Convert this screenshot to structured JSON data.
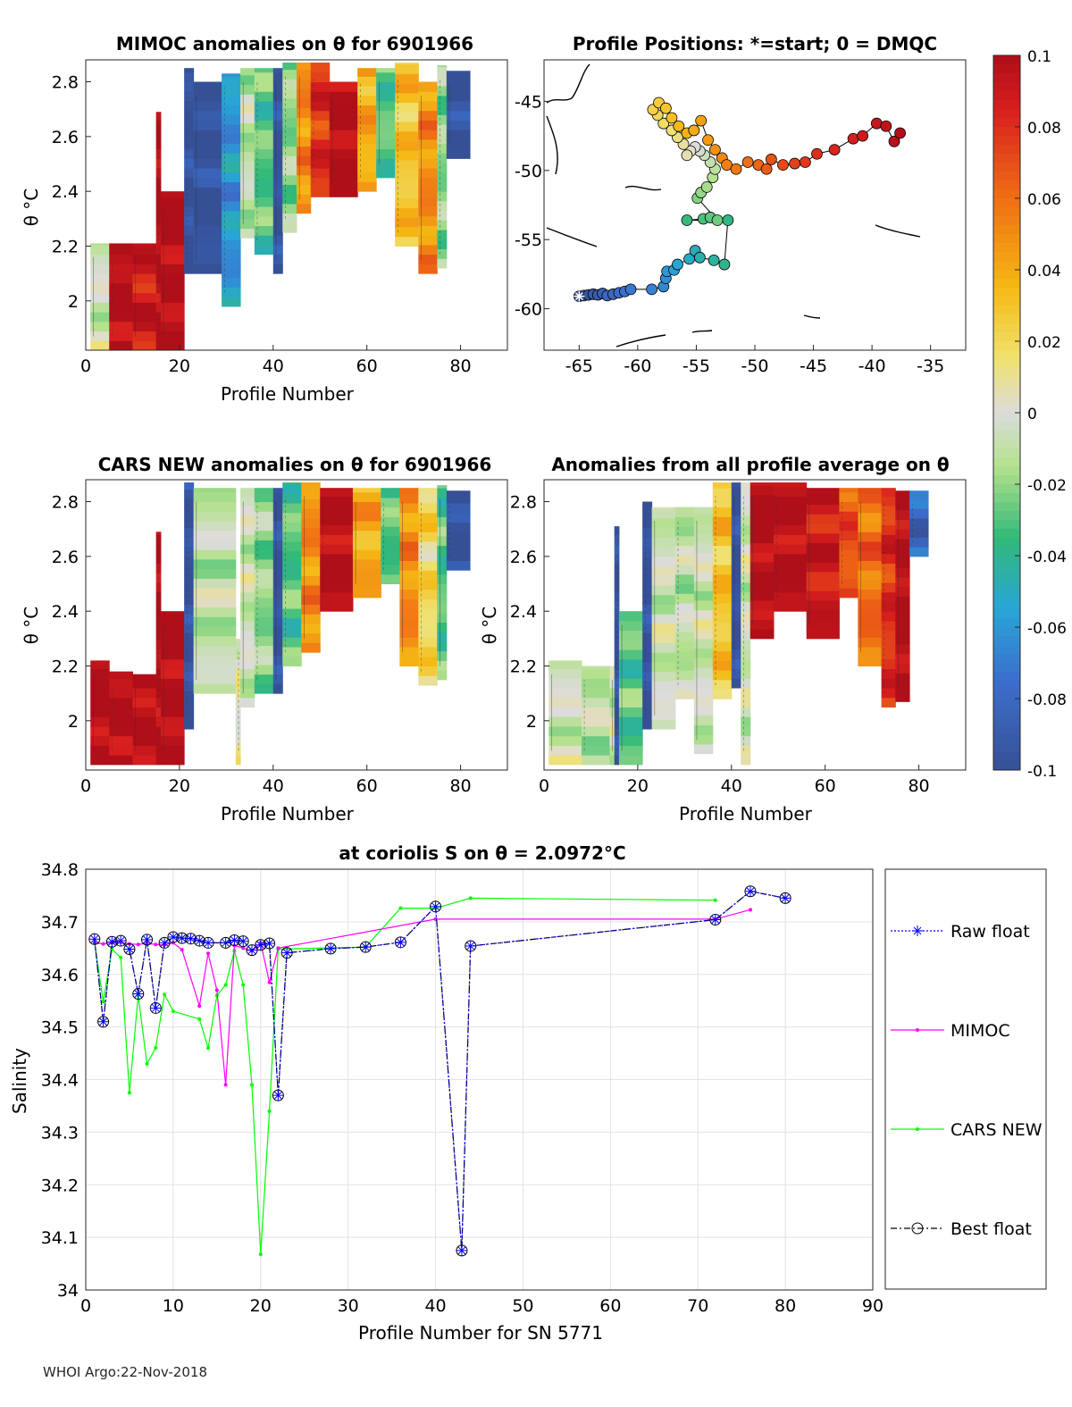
{
  "float_id": "6901966",
  "footer": "WHOI Argo:22-Nov-2018",
  "chart_data": [
    {
      "id": "mimoc",
      "type": "heatmap",
      "title": "MIMOC anomalies on θ  for 6901966",
      "xlabel": "Profile Number",
      "ylabel": "θ °C",
      "xlim": [
        0,
        90
      ],
      "ylim": [
        1.82,
        2.88
      ],
      "xticks": [
        "0",
        "20",
        "40",
        "60",
        "80"
      ],
      "yticks": [
        "2",
        "2.2",
        "2.4",
        "2.6",
        "2.8"
      ],
      "columns": [
        {
          "x0": 1,
          "x1": 5,
          "lo": 1.82,
          "hi": 2.21,
          "v": -0.005
        },
        {
          "x0": 5,
          "x1": 10,
          "lo": 1.82,
          "hi": 2.21,
          "v": 0.1
        },
        {
          "x0": 10,
          "x1": 15,
          "lo": 1.82,
          "hi": 2.21,
          "v": 0.09
        },
        {
          "x0": 15,
          "x1": 16,
          "lo": 1.82,
          "hi": 2.69,
          "v": 0.1
        },
        {
          "x0": 16,
          "x1": 21,
          "lo": 1.82,
          "hi": 2.4,
          "v": 0.1
        },
        {
          "x0": 21,
          "x1": 23,
          "lo": 2.1,
          "hi": 2.85,
          "v": -0.1
        },
        {
          "x0": 23,
          "x1": 29,
          "lo": 2.1,
          "hi": 2.8,
          "v": -0.1
        },
        {
          "x0": 29,
          "x1": 33,
          "lo": 1.98,
          "hi": 2.83,
          "v": -0.06
        },
        {
          "x0": 33,
          "x1": 36,
          "lo": 2.23,
          "hi": 2.85,
          "v": -0.01
        },
        {
          "x0": 36,
          "x1": 40,
          "lo": 2.17,
          "hi": 2.85,
          "v": -0.03
        },
        {
          "x0": 40,
          "x1": 42,
          "lo": 2.1,
          "hi": 2.85,
          "v": -0.1
        },
        {
          "x0": 42,
          "x1": 45,
          "lo": 2.25,
          "hi": 2.87,
          "v": -0.02
        },
        {
          "x0": 45,
          "x1": 48,
          "lo": 2.32,
          "hi": 2.87,
          "v": 0.05
        },
        {
          "x0": 48,
          "x1": 52,
          "lo": 2.38,
          "hi": 2.87,
          "v": 0.08
        },
        {
          "x0": 52,
          "x1": 58,
          "lo": 2.38,
          "hi": 2.8,
          "v": 0.1
        },
        {
          "x0": 58,
          "x1": 62,
          "lo": 2.4,
          "hi": 2.85,
          "v": 0.04
        },
        {
          "x0": 62,
          "x1": 66,
          "lo": 2.45,
          "hi": 2.85,
          "v": -0.03
        },
        {
          "x0": 66,
          "x1": 71,
          "lo": 2.2,
          "hi": 2.87,
          "v": 0.03
        },
        {
          "x0": 71,
          "x1": 75,
          "lo": 2.1,
          "hi": 2.8,
          "v": 0.05
        },
        {
          "x0": 75,
          "x1": 77,
          "lo": 2.12,
          "hi": 2.86,
          "v": -0.02
        },
        {
          "x0": 77,
          "x1": 82,
          "lo": 2.52,
          "hi": 2.84,
          "v": -0.1
        }
      ]
    },
    {
      "id": "map",
      "type": "scatter",
      "title": "Profile Positions: *=start; 0 = DMQC",
      "xlim": [
        -68,
        -32
      ],
      "ylim": [
        -63,
        -42
      ],
      "xticks": [
        "-65",
        "-60",
        "-55",
        "-50",
        "-45",
        "-40",
        "-35"
      ],
      "yticks": [
        "-45",
        "-50",
        "-55",
        "-60"
      ],
      "lon": [
        -65,
        -64.6,
        -64.2,
        -63.8,
        -63.4,
        -63,
        -62.6,
        -62.1,
        -61.6,
        -61.1,
        -60.6,
        -58.8,
        -57.8,
        -57.6,
        -57.5,
        -56.9,
        -56.6,
        -55.6,
        -55.1,
        -54.7,
        -53.5,
        -52.6,
        -52.3,
        -55.8,
        -54.4,
        -53.8,
        -53.2,
        -54.9,
        -54.6,
        -54.1,
        -53.6,
        -53.4,
        -53.8,
        -54.3,
        -54.7,
        -55.1,
        -55.5,
        -55.8,
        -56.1,
        -56.6,
        -57.1,
        -57.8,
        -58.3,
        -58.7,
        -58.2,
        -57.6,
        -57.1,
        -56.5,
        -55.8,
        -55.2,
        -54.6,
        -54,
        -53.4,
        -52.8,
        -52.4,
        -51.6,
        -50.6,
        -49.7,
        -49,
        -48.6,
        -47.6,
        -46.6,
        -45.7,
        -44.7,
        -43.2,
        -41.6,
        -40.8,
        -39.6,
        -38.8,
        -38.1,
        -37.6
      ],
      "lat": [
        -59.1,
        -59.05,
        -59.0,
        -58.95,
        -59.0,
        -58.9,
        -59.05,
        -58.95,
        -58.85,
        -58.75,
        -58.6,
        -58.6,
        -58.4,
        -57.8,
        -57.3,
        -57.2,
        -56.8,
        -56.4,
        -55.8,
        -56.3,
        -56.5,
        -56.8,
        -53.6,
        -53.6,
        -53.5,
        -53.4,
        -53.6,
        -52.0,
        -51.6,
        -51.2,
        -50.5,
        -49.9,
        -49.4,
        -48.9,
        -48.6,
        -48.3,
        -48.6,
        -48.9,
        -48.1,
        -47.6,
        -47.1,
        -46.6,
        -46.0,
        -45.6,
        -45.1,
        -45.5,
        -46.2,
        -46.8,
        -47.3,
        -47.1,
        -46.4,
        -47.8,
        -48.5,
        -49.1,
        -49.6,
        -49.9,
        -49.4,
        -49.6,
        -49.9,
        -49.2,
        -49.6,
        -49.5,
        -49.4,
        -48.8,
        -48.5,
        -47.7,
        -47.5,
        -46.6,
        -46.8,
        -47.9,
        -47.3
      ],
      "value_range": [
        -0.1,
        0.1
      ]
    },
    {
      "id": "cars",
      "type": "heatmap",
      "title": "CARS NEW anomalies on θ for 6901966",
      "xlabel": "Profile Number",
      "ylabel": "θ °C",
      "xlim": [
        0,
        90
      ],
      "ylim": [
        1.82,
        2.88
      ],
      "xticks": [
        "0",
        "20",
        "40",
        "60",
        "80"
      ],
      "yticks": [
        "2",
        "2.2",
        "2.4",
        "2.6",
        "2.8"
      ],
      "columns": [
        {
          "x0": 1,
          "x1": 5,
          "lo": 1.84,
          "hi": 2.22,
          "v": 0.1
        },
        {
          "x0": 5,
          "x1": 10,
          "lo": 1.84,
          "hi": 2.18,
          "v": 0.1
        },
        {
          "x0": 10,
          "x1": 15,
          "lo": 1.84,
          "hi": 2.17,
          "v": 0.1
        },
        {
          "x0": 15,
          "x1": 16,
          "lo": 1.84,
          "hi": 2.69,
          "v": 0.1
        },
        {
          "x0": 16,
          "x1": 21,
          "lo": 1.84,
          "hi": 2.4,
          "v": 0.1
        },
        {
          "x0": 21,
          "x1": 23,
          "lo": 1.97,
          "hi": 2.87,
          "v": -0.1
        },
        {
          "x0": 23,
          "x1": 32,
          "lo": 2.1,
          "hi": 2.85,
          "v": -0.01
        },
        {
          "x0": 32,
          "x1": 33,
          "lo": 1.84,
          "hi": 2.3,
          "v": 0.005
        },
        {
          "x0": 33,
          "x1": 36,
          "lo": 2.05,
          "hi": 2.85,
          "v": -0.005
        },
        {
          "x0": 36,
          "x1": 40,
          "lo": 2.1,
          "hi": 2.85,
          "v": -0.02
        },
        {
          "x0": 40,
          "x1": 42,
          "lo": 2.1,
          "hi": 2.85,
          "v": -0.1
        },
        {
          "x0": 42,
          "x1": 46,
          "lo": 2.2,
          "hi": 2.87,
          "v": -0.03
        },
        {
          "x0": 46,
          "x1": 50,
          "lo": 2.25,
          "hi": 2.87,
          "v": 0.05
        },
        {
          "x0": 50,
          "x1": 57,
          "lo": 2.4,
          "hi": 2.85,
          "v": 0.1
        },
        {
          "x0": 57,
          "x1": 63,
          "lo": 2.45,
          "hi": 2.85,
          "v": 0.04
        },
        {
          "x0": 63,
          "x1": 67,
          "lo": 2.5,
          "hi": 2.85,
          "v": -0.03
        },
        {
          "x0": 67,
          "x1": 71,
          "lo": 2.2,
          "hi": 2.85,
          "v": 0.05
        },
        {
          "x0": 71,
          "x1": 75,
          "lo": 2.13,
          "hi": 2.85,
          "v": 0.02
        },
        {
          "x0": 75,
          "x1": 77,
          "lo": 2.15,
          "hi": 2.86,
          "v": -0.03
        },
        {
          "x0": 77,
          "x1": 82,
          "lo": 2.55,
          "hi": 2.84,
          "v": -0.1
        }
      ]
    },
    {
      "id": "avg",
      "type": "heatmap",
      "title": "Anomalies from all profile average on θ",
      "xlabel": "Profile Number",
      "ylabel": "θ °C",
      "xlim": [
        0,
        90
      ],
      "ylim": [
        1.82,
        2.88
      ],
      "xticks": [
        "0",
        "20",
        "40",
        "60",
        "80"
      ],
      "yticks": [
        "2",
        "2.2",
        "2.4",
        "2.6",
        "2.8"
      ],
      "columns": [
        {
          "x0": 1,
          "x1": 8,
          "lo": 1.84,
          "hi": 2.22,
          "v": -0.005
        },
        {
          "x0": 8,
          "x1": 14,
          "lo": 1.84,
          "hi": 2.2,
          "v": -0.01
        },
        {
          "x0": 14,
          "x1": 15,
          "lo": 1.84,
          "hi": 2.2,
          "v": -0.005
        },
        {
          "x0": 15,
          "x1": 16,
          "lo": 1.84,
          "hi": 2.71,
          "v": -0.1
        },
        {
          "x0": 16,
          "x1": 21,
          "lo": 1.84,
          "hi": 2.4,
          "v": -0.03
        },
        {
          "x0": 21,
          "x1": 23,
          "lo": 1.97,
          "hi": 2.8,
          "v": -0.1
        },
        {
          "x0": 23,
          "x1": 28,
          "lo": 1.97,
          "hi": 2.78,
          "v": -0.005
        },
        {
          "x0": 28,
          "x1": 32,
          "lo": 2.08,
          "hi": 2.78,
          "v": -0.01
        },
        {
          "x0": 32,
          "x1": 36,
          "lo": 1.88,
          "hi": 2.78,
          "v": -0.005
        },
        {
          "x0": 36,
          "x1": 40,
          "lo": 2.08,
          "hi": 2.87,
          "v": 0.03
        },
        {
          "x0": 40,
          "x1": 42,
          "lo": 2.12,
          "hi": 2.87,
          "v": -0.1
        },
        {
          "x0": 42,
          "x1": 44,
          "lo": 1.84,
          "hi": 2.87,
          "v": -0.005
        },
        {
          "x0": 44,
          "x1": 49,
          "lo": 2.3,
          "hi": 2.87,
          "v": 0.1
        },
        {
          "x0": 49,
          "x1": 56,
          "lo": 2.4,
          "hi": 2.87,
          "v": 0.1
        },
        {
          "x0": 56,
          "x1": 63,
          "lo": 2.3,
          "hi": 2.85,
          "v": 0.09
        },
        {
          "x0": 63,
          "x1": 67,
          "lo": 2.45,
          "hi": 2.85,
          "v": 0.07
        },
        {
          "x0": 67,
          "x1": 72,
          "lo": 2.2,
          "hi": 2.85,
          "v": 0.06
        },
        {
          "x0": 72,
          "x1": 75,
          "lo": 2.05,
          "hi": 2.85,
          "v": 0.08
        },
        {
          "x0": 75,
          "x1": 78,
          "lo": 2.07,
          "hi": 2.84,
          "v": 0.1
        },
        {
          "x0": 78,
          "x1": 82,
          "lo": 2.6,
          "hi": 2.84,
          "v": -0.08
        }
      ]
    },
    {
      "id": "salinity",
      "type": "line",
      "title": "at coriolis S on θ = 2.0972°C",
      "xlabel": "Profile Number for SN 5771",
      "ylabel": "Salinity",
      "xlim": [
        0,
        90
      ],
      "ylim": [
        34,
        34.8
      ],
      "xticks": [
        "0",
        "10",
        "20",
        "30",
        "40",
        "50",
        "60",
        "70",
        "80",
        "90"
      ],
      "yticks": [
        "34",
        "34.1",
        "34.2",
        "34.3",
        "34.4",
        "34.5",
        "34.6",
        "34.7",
        "34.8"
      ],
      "series": [
        {
          "name": "Raw float",
          "color": "#0000ff",
          "x": [
            1,
            2,
            3,
            4,
            5,
            6,
            7,
            8,
            9,
            10,
            11,
            12,
            13,
            14,
            16,
            17,
            18,
            19,
            20,
            21,
            22,
            23,
            28,
            32,
            36,
            40,
            43,
            44,
            72,
            76,
            80
          ],
          "y": [
            34.667,
            34.51,
            34.662,
            34.664,
            34.648,
            34.563,
            34.666,
            34.536,
            34.66,
            34.671,
            34.669,
            34.668,
            34.664,
            34.66,
            34.66,
            34.665,
            34.663,
            34.646,
            34.656,
            34.659,
            34.37,
            34.641,
            34.649,
            34.652,
            34.661,
            34.729,
            34.075,
            34.654,
            34.704,
            34.758,
            34.745
          ]
        },
        {
          "name": "MIMOC",
          "color": "#ff00ff",
          "x": [
            1,
            2,
            3,
            4,
            5,
            6,
            7,
            8,
            9,
            10,
            11,
            13,
            14,
            15,
            16,
            17,
            18,
            19,
            20,
            21,
            22,
            40,
            72,
            76
          ],
          "y": [
            34.66,
            34.658,
            34.66,
            34.661,
            34.658,
            34.657,
            34.659,
            34.657,
            34.656,
            34.66,
            34.647,
            34.54,
            34.64,
            34.57,
            34.39,
            34.655,
            34.65,
            34.645,
            34.66,
            34.585,
            34.65,
            34.705,
            34.705,
            34.723
          ]
        },
        {
          "name": "CARS NEW",
          "color": "#00ff00",
          "x": [
            1,
            2,
            3,
            4,
            5,
            6,
            7,
            8,
            9,
            10,
            13,
            14,
            15,
            16,
            17,
            18,
            19,
            20,
            21,
            22,
            32,
            36,
            40,
            44,
            72
          ],
          "y": [
            34.66,
            34.548,
            34.648,
            34.632,
            34.375,
            34.56,
            34.43,
            34.46,
            34.562,
            34.53,
            34.515,
            34.46,
            34.56,
            34.58,
            34.645,
            34.58,
            34.39,
            34.068,
            34.34,
            34.648,
            34.652,
            34.726,
            34.726,
            34.745,
            34.741
          ]
        },
        {
          "name": "Best float",
          "color": "#000000",
          "x": [
            1,
            2,
            3,
            4,
            5,
            6,
            7,
            8,
            9,
            10,
            11,
            12,
            13,
            14,
            16,
            17,
            18,
            19,
            20,
            21,
            22,
            23,
            28,
            32,
            36,
            40,
            43,
            44,
            72,
            76,
            80
          ],
          "y": [
            34.667,
            34.51,
            34.662,
            34.664,
            34.648,
            34.563,
            34.666,
            34.536,
            34.66,
            34.671,
            34.669,
            34.668,
            34.664,
            34.66,
            34.66,
            34.665,
            34.663,
            34.646,
            34.656,
            34.659,
            34.37,
            34.641,
            34.649,
            34.652,
            34.661,
            34.729,
            34.075,
            34.654,
            34.704,
            34.758,
            34.745
          ]
        }
      ]
    },
    {
      "id": "colorbar",
      "type": "colorbar",
      "range": [
        -0.1,
        0.1
      ],
      "ticks": [
        "0.1",
        "0.08",
        "0.06",
        "0.04",
        "0.02",
        "0",
        "-0.02",
        "-0.04",
        "-0.06",
        "-0.08",
        "-0.1"
      ]
    }
  ]
}
